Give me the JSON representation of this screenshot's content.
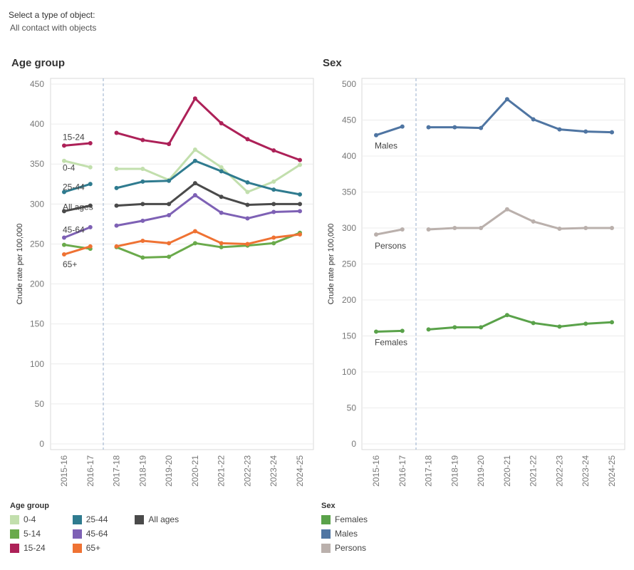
{
  "filter": {
    "label": "Select a type of object:",
    "value": "All contact with objects"
  },
  "chart_data": [
    {
      "type": "line",
      "title": "Age group",
      "ylabel": "Crude rate per 100,000",
      "xlabel": "",
      "ylim": [
        0,
        450
      ],
      "yticks": [
        0,
        50,
        100,
        150,
        200,
        250,
        300,
        350,
        400,
        450
      ],
      "categories": [
        "2015-16",
        "2016-17",
        "2017-18",
        "2018-19",
        "2019-20",
        "2020-21",
        "2021-22",
        "2022-23",
        "2023-24",
        "2024-25"
      ],
      "break_between": [
        "2016-17",
        "2017-18"
      ],
      "legend_title": "Age group",
      "legend_placement": "bottom",
      "series": [
        {
          "name": "0-4",
          "color": "#c2dfad",
          "label": "0-4",
          "values": [
            354,
            346,
            344,
            344,
            330,
            368,
            346,
            315,
            328,
            349
          ]
        },
        {
          "name": "5-14",
          "color": "#6aaa4b",
          "label": "",
          "values": [
            249,
            244,
            246,
            233,
            234,
            251,
            246,
            248,
            251,
            264
          ]
        },
        {
          "name": "15-24",
          "color": "#ad2158",
          "label": "15-24",
          "values": [
            373,
            376,
            389,
            380,
            375,
            432,
            401,
            381,
            367,
            355
          ]
        },
        {
          "name": "25-44",
          "color": "#2f7b8f",
          "label": "25-44",
          "values": [
            315,
            325,
            320,
            328,
            329,
            354,
            341,
            327,
            318,
            312
          ]
        },
        {
          "name": "45-64",
          "color": "#7e61b5",
          "label": "45-64",
          "values": [
            258,
            271,
            273,
            279,
            286,
            311,
            289,
            282,
            290,
            291
          ]
        },
        {
          "name": "65+",
          "color": "#ef7233",
          "label": "65+",
          "values": [
            237,
            247,
            247,
            254,
            251,
            266,
            251,
            250,
            258,
            262
          ]
        },
        {
          "name": "All ages",
          "color": "#4a4a4a",
          "label": "All ages",
          "values": [
            291,
            298,
            298,
            300,
            300,
            326,
            309,
            299,
            300,
            300
          ]
        }
      ]
    },
    {
      "type": "line",
      "title": "Sex",
      "ylabel": "Crude rate per 100,000",
      "xlabel": "",
      "ylim": [
        0,
        500
      ],
      "yticks": [
        0,
        50,
        100,
        150,
        200,
        250,
        300,
        350,
        400,
        450,
        500
      ],
      "categories": [
        "2015-16",
        "2016-17",
        "2017-18",
        "2018-19",
        "2019-20",
        "2020-21",
        "2021-22",
        "2022-23",
        "2023-24",
        "2024-25"
      ],
      "break_between": [
        "2016-17",
        "2017-18"
      ],
      "legend_title": "Sex",
      "legend_placement": "bottom",
      "series": [
        {
          "name": "Females",
          "color": "#5aa24a",
          "label": "Females",
          "values": [
            156,
            157,
            159,
            162,
            162,
            179,
            168,
            163,
            167,
            169
          ]
        },
        {
          "name": "Males",
          "color": "#4f75a2",
          "label": "Males",
          "values": [
            429,
            441,
            440,
            440,
            439,
            479,
            451,
            437,
            434,
            433
          ]
        },
        {
          "name": "Persons",
          "color": "#bab0ac",
          "label": "Persons",
          "values": [
            291,
            298,
            298,
            300,
            300,
            326,
            309,
            299,
            300,
            300
          ]
        }
      ]
    }
  ]
}
